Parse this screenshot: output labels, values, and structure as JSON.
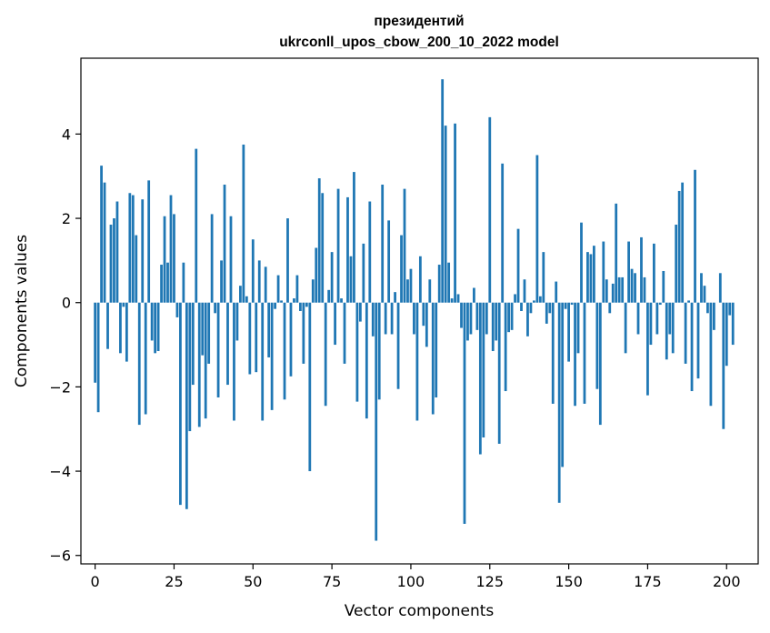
{
  "chart_data": {
    "type": "bar",
    "title_line1": "президентий",
    "title_line2": "ukrconll_upos_cbow_200_10_2022 model",
    "xlabel": "Vector components",
    "ylabel": "Components values",
    "xlim": [
      -4.5,
      210
    ],
    "ylim": [
      -6.2,
      5.8
    ],
    "xticks": [
      0,
      25,
      50,
      75,
      100,
      125,
      150,
      175,
      200
    ],
    "yticks": [
      -6,
      -4,
      -2,
      0,
      2,
      4
    ],
    "ytick_labels": [
      "−6",
      "−4",
      "−2",
      "0",
      "2",
      "4"
    ],
    "bar_color": "#1f77b4",
    "grid": false,
    "values": [
      -1.9,
      -2.6,
      3.25,
      2.85,
      -1.1,
      1.85,
      2.0,
      2.4,
      -1.2,
      -0.1,
      -1.4,
      2.6,
      2.55,
      1.6,
      -2.9,
      2.45,
      -2.65,
      2.9,
      -0.9,
      -1.2,
      -1.15,
      0.9,
      2.05,
      0.95,
      2.55,
      2.1,
      -0.35,
      -4.8,
      0.95,
      -4.9,
      -3.05,
      -1.95,
      3.65,
      -2.95,
      -1.25,
      -2.75,
      -1.45,
      2.1,
      -0.25,
      -2.25,
      1.0,
      2.8,
      -1.95,
      2.05,
      -2.8,
      -0.9,
      0.4,
      3.75,
      0.15,
      -1.7,
      1.5,
      -1.65,
      1.0,
      -2.8,
      0.85,
      -1.3,
      -2.55,
      -0.15,
      0.65,
      0.05,
      -2.3,
      2.0,
      -1.75,
      0.1,
      0.65,
      -0.2,
      -1.45,
      -0.1,
      -4.0,
      0.55,
      1.3,
      2.95,
      2.6,
      -2.45,
      0.3,
      1.2,
      -1.0,
      2.7,
      0.1,
      -1.45,
      2.5,
      1.1,
      3.1,
      -2.35,
      -0.45,
      1.4,
      -2.75,
      2.4,
      -0.8,
      -5.65,
      -2.3,
      2.8,
      -0.75,
      1.95,
      -0.75,
      0.25,
      -2.05,
      1.6,
      2.7,
      0.55,
      0.8,
      -0.75,
      -2.8,
      1.1,
      -0.55,
      -1.05,
      0.55,
      -2.65,
      -2.25,
      0.9,
      5.3,
      4.2,
      0.95,
      0.1,
      4.25,
      0.2,
      -0.6,
      -5.25,
      -0.9,
      -0.75,
      0.35,
      -0.65,
      -3.6,
      -3.2,
      -0.75,
      4.4,
      -1.15,
      -0.9,
      -3.35,
      3.3,
      -2.1,
      -0.7,
      -0.65,
      0.2,
      1.75,
      -0.2,
      0.55,
      -0.8,
      -0.25,
      0.05,
      3.5,
      0.15,
      1.2,
      -0.5,
      -0.25,
      -2.4,
      0.5,
      -4.75,
      -3.9,
      -0.15,
      -1.4,
      -0.05,
      -2.45,
      -1.2,
      1.9,
      -2.4,
      1.2,
      1.15,
      1.35,
      -2.05,
      -2.9,
      1.45,
      0.55,
      -0.25,
      0.45,
      2.35,
      0.6,
      0.6,
      -1.2,
      1.45,
      0.8,
      0.7,
      -0.75,
      1.55,
      0.6,
      -2.2,
      -1.0,
      1.4,
      -0.75,
      -0.05,
      0.75,
      -1.35,
      -0.75,
      -1.2,
      1.85,
      2.65,
      2.85,
      -1.45,
      0.05,
      -2.1,
      3.15,
      -1.8,
      0.7,
      0.4,
      -0.25,
      -2.45,
      -0.65,
      0.0,
      0.7,
      -3.0,
      -1.5,
      -0.3,
      -1.0
    ]
  }
}
